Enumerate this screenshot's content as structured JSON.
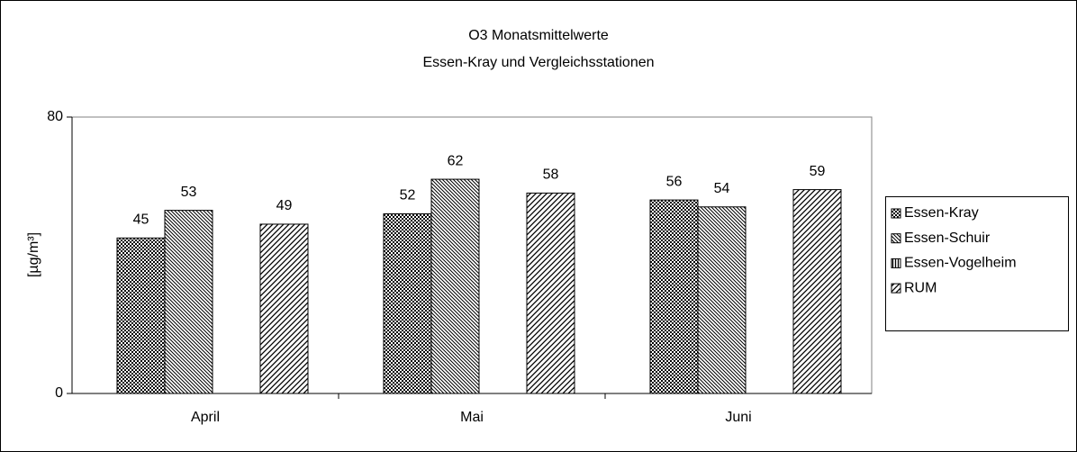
{
  "chart_data": {
    "type": "bar",
    "title": "O3 Monatsmittelwerte",
    "subtitle": "Essen-Kray und Vergleichsstationen",
    "y_label": "[µg/m³]",
    "categories": [
      "April",
      "Mai",
      "Juni"
    ],
    "series": [
      {
        "name": "Essen-Kray",
        "color": "#000000",
        "pattern": "checker",
        "values": [
          45,
          52,
          56
        ]
      },
      {
        "name": "Essen-Schuir",
        "color": "#000000",
        "pattern": "back-diagonal",
        "values": [
          53,
          62,
          54
        ]
      },
      {
        "name": "Essen-Vogelheim",
        "color": "#000000",
        "pattern": "vertical",
        "values": [
          null,
          null,
          null
        ]
      },
      {
        "name": "RUM",
        "color": "#000000",
        "pattern": "diagonal",
        "values": [
          49,
          58,
          59
        ]
      }
    ],
    "ylim": [
      0,
      80
    ],
    "yticks": [
      0,
      80
    ],
    "grid": false,
    "legend": "right",
    "data_labels": true
  }
}
